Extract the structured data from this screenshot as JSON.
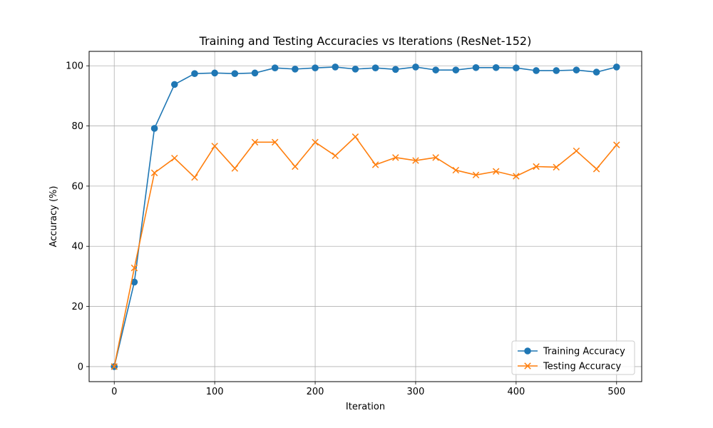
{
  "chart_data": {
    "type": "line",
    "title": "Training and Testing Accuracies vs Iterations (ResNet-152)",
    "xlabel": "Iteration",
    "ylabel": "Accuracy (%)",
    "xlim": [
      -25,
      525
    ],
    "ylim": [
      -5,
      104.8
    ],
    "xticks": [
      0,
      100,
      200,
      300,
      400,
      500
    ],
    "yticks": [
      0,
      20,
      40,
      60,
      80,
      100
    ],
    "grid": true,
    "legend_position": "lower-right",
    "x": [
      0,
      20,
      40,
      60,
      80,
      100,
      120,
      140,
      160,
      180,
      200,
      220,
      240,
      260,
      280,
      300,
      320,
      340,
      360,
      380,
      400,
      420,
      440,
      460,
      480,
      500
    ],
    "series": [
      {
        "name": "Training Accuracy",
        "color": "#1f77b4",
        "marker": "circle",
        "values": [
          0,
          28.1,
          79.2,
          93.8,
          97.4,
          97.6,
          97.4,
          97.6,
          99.3,
          98.9,
          99.3,
          99.6,
          98.9,
          99.3,
          98.8,
          99.6,
          98.6,
          98.6,
          99.4,
          99.4,
          99.3,
          98.4,
          98.4,
          98.6,
          97.9,
          99.6
        ]
      },
      {
        "name": "Testing Accuracy",
        "color": "#ff7f0e",
        "marker": "x",
        "values": [
          0,
          32.8,
          64.4,
          69.3,
          62.9,
          73.3,
          65.9,
          74.6,
          74.6,
          66.5,
          74.6,
          70.1,
          76.4,
          67.1,
          69.5,
          68.5,
          69.5,
          65.3,
          63.7,
          64.9,
          63.3,
          66.5,
          66.3,
          71.7,
          65.7,
          73.7
        ]
      }
    ]
  }
}
